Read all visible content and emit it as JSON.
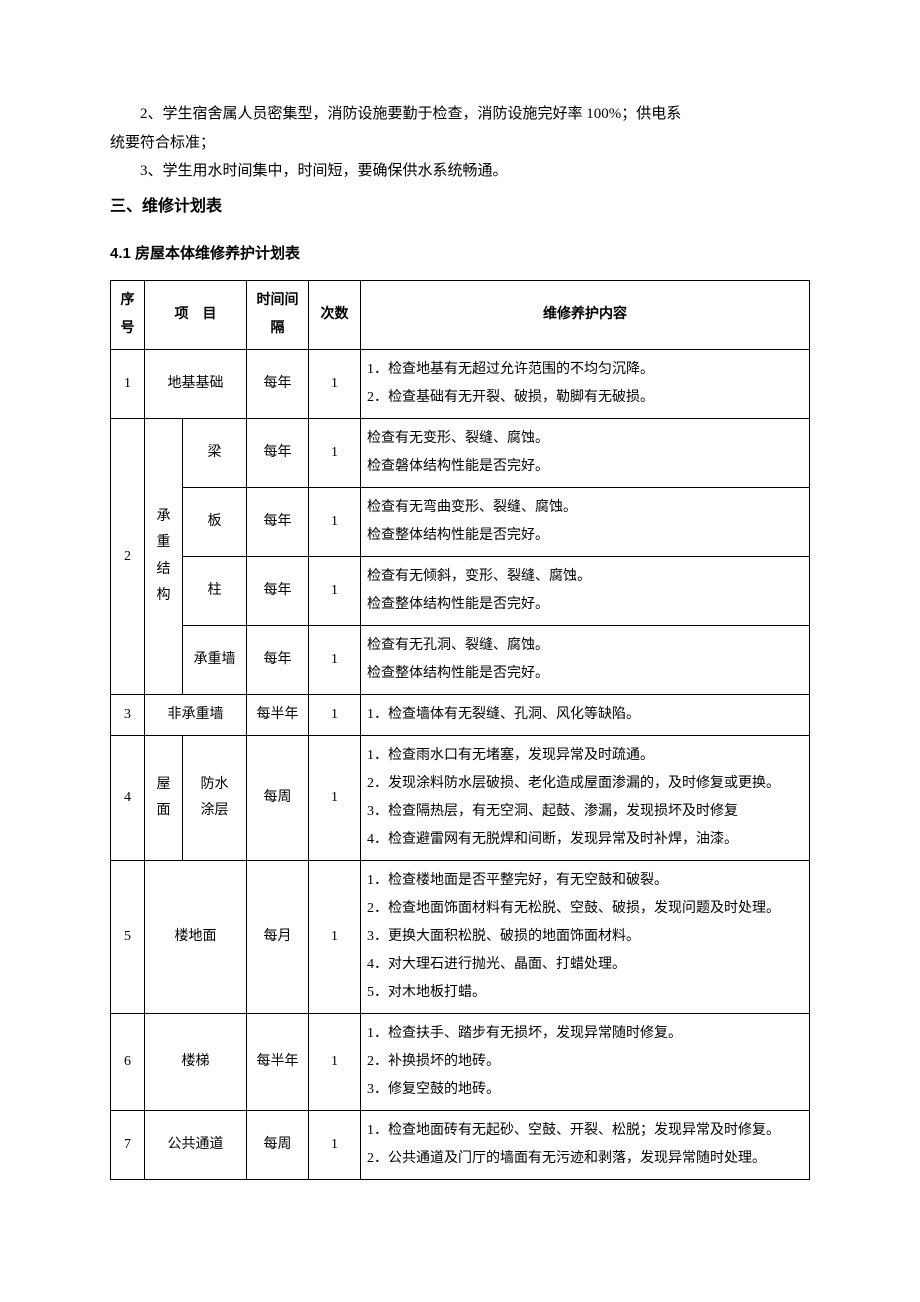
{
  "paragraphs": {
    "p1": "2、学生宿舍属人员密集型，消防设施要勤于检查，消防设施完好率 100%；供电系",
    "p1b": "统要符合标准；",
    "p2": "3、学生用水时间集中，时间短，要确保供水系统畅通。"
  },
  "headings": {
    "h2": "三、维修计划表",
    "h3": "4.1 房屋本体维修养护计划表"
  },
  "table": {
    "headers": {
      "num": "序号",
      "item": "项　目",
      "interval": "时间间隔",
      "times": "次数",
      "content": "维修养护内容"
    },
    "rows": {
      "r1": {
        "num": "1",
        "item": "地基基础",
        "interval": "每年",
        "times": "1",
        "content": "1．检查地基有无超过允许范围的不均匀沉降。\n2．检查基础有无开裂、破损，勒脚有无破损。"
      },
      "r2": {
        "num": "2",
        "group": "承重结构",
        "sub1": {
          "name": "梁",
          "interval": "每年",
          "times": "1",
          "content": "检查有无变形、裂缝、腐蚀。\n检查磐体结构性能是否完好。"
        },
        "sub2": {
          "name": "板",
          "interval": "每年",
          "times": "1",
          "content": "检查有无弯曲变形、裂缝、腐蚀。\n检查整体结构性能是否完好。"
        },
        "sub3": {
          "name": "柱",
          "interval": "每年",
          "times": "1",
          "content": "检查有无倾斜，变形、裂缝、腐蚀。\n检查整体结构性能是否完好。"
        },
        "sub4": {
          "name": "承重墙",
          "interval": "每年",
          "times": "1",
          "content": "检查有无孔洞、裂缝、腐蚀。\n检查整体结构性能是否完好。"
        }
      },
      "r3": {
        "num": "3",
        "item": "非承重墙",
        "interval": "每半年",
        "times": "1",
        "content": "1．检查墙体有无裂缝、孔洞、风化等缺陷。"
      },
      "r4": {
        "num": "4",
        "groupA": "屋面",
        "groupB": "防水涂层",
        "interval": "每周",
        "times": "1",
        "content": "1．检查雨水口有无堵塞，发现异常及时疏通。\n2．发现涂料防水层破损、老化造成屋面渗漏的，及时修复或更换。\n3．检查隔热层，有无空洞、起鼓、渗漏，发现损坏及时修复\n4．检查避雷网有无脱焊和间断，发现异常及时补焊，油漆。"
      },
      "r5": {
        "num": "5",
        "item": "楼地面",
        "interval": "每月",
        "times": "1",
        "content": "1．检查楼地面是否平整完好，有无空鼓和破裂。\n2．检查地面饰面材料有无松脱、空鼓、破损，发现问题及时处理。\n3．更换大面积松脱、破损的地面饰面材料。\n4．对大理石进行抛光、晶面、打蜡处理。\n5．对木地板打蜡。"
      },
      "r6": {
        "num": "6",
        "item": "楼梯",
        "interval": "每半年",
        "times": "1",
        "content": "1．检查扶手、踏步有无损坏，发现异常随时修复。\n2．补换损坏的地砖。\n3．修复空鼓的地砖。"
      },
      "r7": {
        "num": "7",
        "item": "公共通道",
        "interval": "每周",
        "times": "1",
        "content": "1．检查地面砖有无起砂、空鼓、开裂、松脱；发现异常及时修复。\n2．公共通道及门厅的墙面有无污迹和剥落，发现异常随时处理。"
      }
    }
  }
}
